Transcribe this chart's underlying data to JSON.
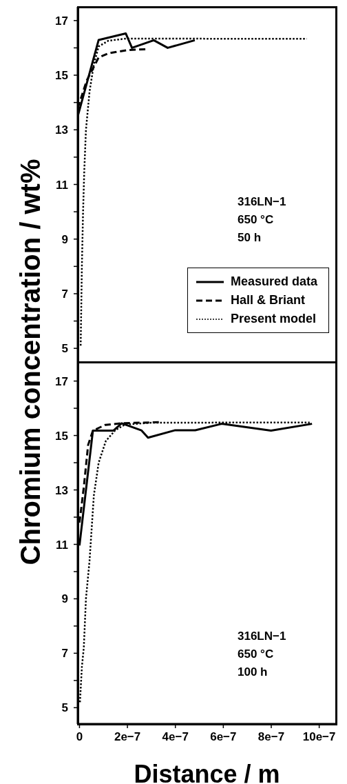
{
  "chart_data": [
    {
      "type": "line",
      "ylabel": "Chromium concentration / wt%",
      "annotations": [
        "316LN−1",
        "650 °C",
        "50 h"
      ],
      "legend": "right",
      "tick_labels": "y",
      "xlim": [
        -7e-09,
        1.07e-06
      ],
      "xticks": [
        {
          "value": 0,
          "label": null
        },
        {
          "value": 2e-07,
          "label": null
        },
        {
          "value": 4e-07,
          "label": null
        },
        {
          "value": 6e-07,
          "label": null
        },
        {
          "value": 8e-07,
          "label": null
        },
        {
          "value": 1e-06,
          "label": null
        }
      ],
      "ylim": [
        4.5,
        17.5
      ],
      "yticks": [
        5,
        {
          "value": 6,
          "label": null
        },
        7,
        {
          "value": 8,
          "label": null
        },
        9,
        {
          "value": 10,
          "label": null
        },
        11,
        {
          "value": 12,
          "label": null
        },
        13,
        {
          "value": 14,
          "label": null
        },
        15,
        {
          "value": 16,
          "label": null
        },
        17
      ],
      "series": [
        {
          "name": "Measured data",
          "color": "#000000",
          "line_style": "solid",
          "x": [
            -7e-09,
            8e-08,
            1.93e-07,
            2.19e-07,
            3.1e-07,
            3.68e-07,
            4.81e-07
          ],
          "values": [
            13.5,
            16.29,
            16.53,
            16.0,
            16.28,
            16.0,
            16.28
          ]
        },
        {
          "name": "Hall & Briant",
          "color": "#000000",
          "line_style": "dashed",
          "x": [
            -7e-09,
            3e-08,
            8e-08,
            1.2e-07,
            2e-07,
            2.8e-07
          ],
          "values": [
            13.8,
            14.8,
            15.65,
            15.8,
            15.92,
            15.95
          ]
        },
        {
          "name": "Present model",
          "color": "#000000",
          "line_style": "dotted",
          "x": [
            5e-09,
            1e-08,
            1.5e-08,
            2e-08,
            2.7e-08,
            4.2e-08,
            6e-08,
            8e-08,
            1.2e-07,
            1.94e-07,
            9.48e-07
          ],
          "values": [
            5.1,
            8,
            10,
            11.5,
            13,
            14.4,
            15.4,
            16.05,
            16.26,
            16.34,
            16.33
          ]
        }
      ]
    },
    {
      "type": "line",
      "xlabel": "Distance / m",
      "annotations": [
        "316LN−1",
        "650 °C",
        "100 h"
      ],
      "xlim": [
        -7e-09,
        1.07e-06
      ],
      "xticks": [
        0,
        {
          "value": 2e-07,
          "label": "2e−7"
        },
        {
          "value": 4e-07,
          "label": "4e−7"
        },
        {
          "value": 6e-07,
          "label": "6e−7"
        },
        {
          "value": 8e-07,
          "label": "8e−7"
        },
        {
          "value": 1e-06,
          "label": "10e−7"
        }
      ],
      "ylim": [
        4.4,
        17.7
      ],
      "yticks": [
        5,
        {
          "value": 6,
          "label": null
        },
        7,
        {
          "value": 8,
          "label": null
        },
        9,
        {
          "value": 10,
          "label": null
        },
        11,
        {
          "value": 12,
          "label": null
        },
        13,
        {
          "value": 14,
          "label": null
        },
        15,
        {
          "value": 16,
          "label": null
        },
        17
      ],
      "series": [
        {
          "color": "#000000",
          "line_style": "solid",
          "x": [
            0,
            5.6e-08,
            1.42e-07,
            1.76e-07,
            2.58e-07,
            2.86e-07,
            3.97e-07,
            4.83e-07,
            5.93e-07,
            7.99e-07,
            9.7e-07
          ],
          "values": [
            10.96,
            15.18,
            15.18,
            15.45,
            15.19,
            14.92,
            15.19,
            15.19,
            15.43,
            15.18,
            15.43
          ]
        },
        {
          "color": "#000000",
          "line_style": "dashed",
          "x": [
            0,
            1.8e-08,
            3.6e-08,
            5.6e-08,
            1.08e-07,
            1.76e-07,
            3.39e-07
          ],
          "values": [
            11.8,
            13.1,
            14.65,
            15.18,
            15.39,
            15.45,
            15.49
          ]
        },
        {
          "color": "#000000",
          "line_style": "dotted",
          "x": [
            2e-09,
            1e-08,
            1.8e-08,
            2.7e-08,
            4.2e-08,
            6e-08,
            8e-08,
            1.1e-07,
            1.5e-07,
            1.9e-07,
            3e-07,
            9.6e-07
          ],
          "values": [
            5.2,
            6.5,
            7.2,
            9,
            10.4,
            12.8,
            14,
            14.8,
            15.2,
            15.4,
            15.47,
            15.48
          ]
        }
      ]
    }
  ]
}
